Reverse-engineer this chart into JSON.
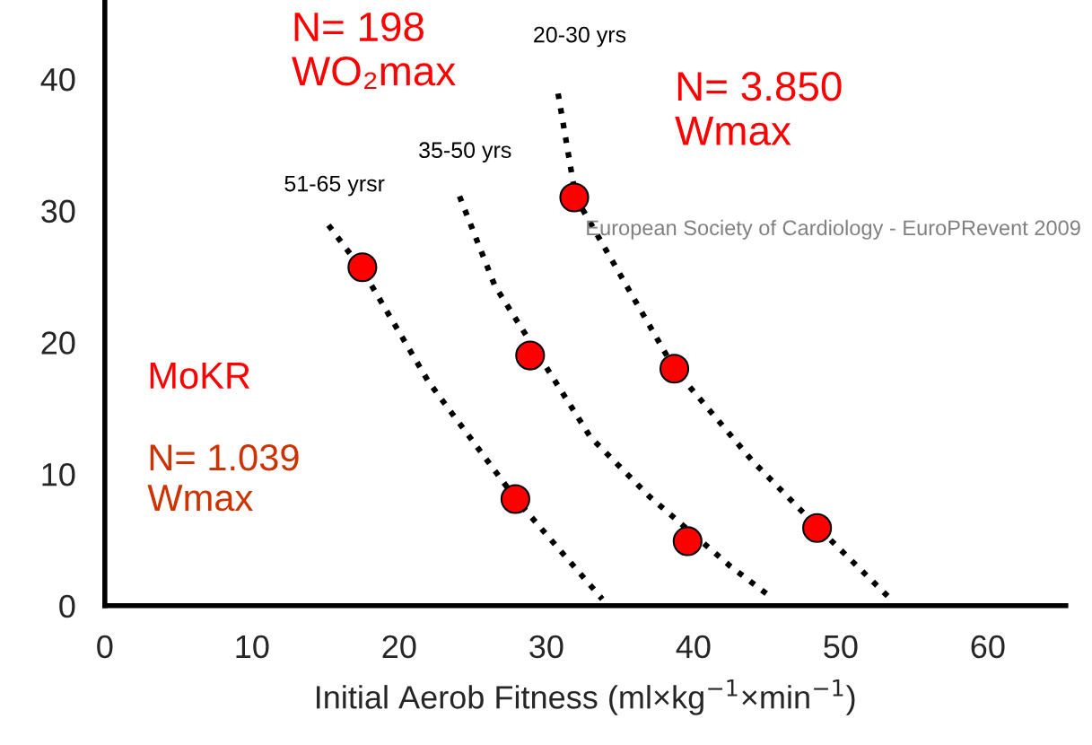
{
  "chart_data": {
    "type": "scatter",
    "xlabel": "Initial Aerob Fitness (ml×kg$^{−1}$×min$^{−1}$)",
    "xlim": [
      0,
      65.3
    ],
    "ylim": [
      0,
      46
    ],
    "xticks": [
      0,
      10,
      20,
      30,
      40,
      50,
      60
    ],
    "yticks": [
      0,
      10,
      20,
      30,
      40
    ],
    "grid": false,
    "legend": false,
    "series": [
      {
        "marker": "circle",
        "color": "#ff0000",
        "x": [
          17.5,
          27.9,
          28.9,
          39.6,
          31.9,
          38.7,
          48.4
        ],
        "values": [
          25.7,
          8.1,
          19.0,
          4.9,
          31.0,
          18.0,
          5.9
        ]
      },
      {
        "type": "line",
        "color": "#000000",
        "line_style": "dotted",
        "marker": "none",
        "x": [
          15.2,
          17.5,
          22,
          28,
          33.8
        ],
        "values": [
          28.9,
          25.5,
          17,
          8,
          0.5
        ]
      },
      {
        "type": "line",
        "color": "#000000",
        "line_style": "dotted",
        "marker": "none",
        "x": [
          24.1,
          26.5,
          33,
          37,
          42.5,
          45.2
        ],
        "values": [
          31.1,
          24.3,
          12.8,
          8.3,
          3,
          0.7
        ]
      },
      {
        "type": "line",
        "color": "#000000",
        "line_style": "dotted",
        "marker": "none",
        "x": [
          30.8,
          32,
          38.7,
          44,
          48.4,
          53.4
        ],
        "values": [
          38.9,
          31,
          18,
          11,
          6,
          0.5
        ]
      }
    ],
    "annotations": [
      "20-30 yrs",
      "35-50 yrs",
      "51-65 yrsr",
      "N= 198\nWO₂max",
      "N= 3.850\nWmax",
      "MoKR",
      "N= 1.039\nWmax",
      "European Society of Cardiology - EuroPRevent 2009"
    ]
  }
}
